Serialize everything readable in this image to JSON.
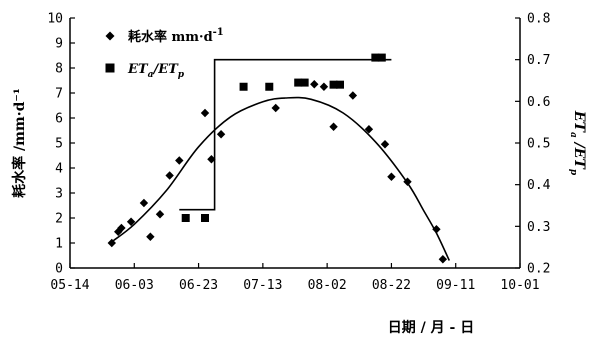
{
  "chart_data": {
    "type": "scatter",
    "xlabel": "日期 / 月 - 日",
    "ylabel_left": "耗水率 /mm·d⁻¹",
    "ylabel_right": {
      "base1": "ET",
      "sub1": "a",
      "sep": " /",
      "base2": "ET",
      "sub2": "p"
    },
    "x_ticks": [
      "05-14",
      "06-03",
      "06-23",
      "07-13",
      "08-02",
      "08-22",
      "09-11",
      "10-01"
    ],
    "x_tick_days": [
      0,
      20,
      40,
      60,
      80,
      100,
      120,
      140
    ],
    "xlim_days": [
      0,
      140
    ],
    "y_left_ticks": [
      "0",
      "1",
      "2",
      "3",
      "4",
      "5",
      "6",
      "7",
      "8",
      "9",
      "10"
    ],
    "ylim_left": [
      0,
      10
    ],
    "y_right_ticks": [
      "0.2",
      "0.3",
      "0.4",
      "0.5",
      "0.6",
      "0.7",
      "0.8"
    ],
    "ylim_right": [
      0.2,
      0.8
    ],
    "legend": {
      "position": "top-left",
      "series1": {
        "text": "耗水率 mm·d",
        "sup": "-1"
      },
      "series2": {
        "base1": "ET",
        "sub1": "a",
        "sep": "/",
        "base2": "ET",
        "sub2": "p"
      }
    },
    "series": [
      {
        "name": "耗水率 mm·d⁻¹",
        "axis": "left",
        "marker": "diamond",
        "points": [
          [
            13,
            1.0
          ],
          [
            15,
            1.45
          ],
          [
            16,
            1.6
          ],
          [
            19,
            1.85
          ],
          [
            23,
            2.6
          ],
          [
            25,
            1.25
          ],
          [
            28,
            2.15
          ],
          [
            31,
            3.7
          ],
          [
            34,
            4.3
          ],
          [
            42,
            6.2
          ],
          [
            44,
            4.35
          ],
          [
            47,
            5.35
          ],
          [
            64,
            6.4
          ],
          [
            76,
            7.35
          ],
          [
            79,
            7.25
          ],
          [
            82,
            5.65
          ],
          [
            88,
            6.9
          ],
          [
            93,
            5.55
          ],
          [
            98,
            4.95
          ],
          [
            100,
            3.65
          ],
          [
            105,
            3.45
          ],
          [
            114,
            1.55
          ],
          [
            116,
            0.35
          ]
        ]
      },
      {
        "name": "ETa/ETp",
        "axis": "right",
        "marker": "square",
        "points": [
          [
            36,
            0.32
          ],
          [
            42,
            0.32
          ],
          [
            54,
            0.635
          ],
          [
            62,
            0.635
          ],
          [
            71,
            0.645
          ],
          [
            73,
            0.645
          ],
          [
            82,
            0.64
          ],
          [
            84,
            0.64
          ],
          [
            95,
            0.705
          ],
          [
            97,
            0.705
          ]
        ]
      }
    ],
    "fit_curve": {
      "axis": "left",
      "points": [
        [
          13,
          1.05
        ],
        [
          20,
          1.75
        ],
        [
          30,
          3.1
        ],
        [
          40,
          4.85
        ],
        [
          50,
          6.05
        ],
        [
          60,
          6.65
        ],
        [
          67,
          6.8
        ],
        [
          75,
          6.75
        ],
        [
          85,
          6.2
        ],
        [
          95,
          5.05
        ],
        [
          105,
          3.4
        ],
        [
          110,
          2.3
        ],
        [
          114,
          1.4
        ],
        [
          118,
          0.3
        ]
      ]
    },
    "step_line": {
      "axis": "right",
      "points": [
        [
          34,
          0.34
        ],
        [
          45,
          0.34
        ],
        [
          45,
          0.7
        ],
        [
          100,
          0.7
        ]
      ]
    }
  }
}
